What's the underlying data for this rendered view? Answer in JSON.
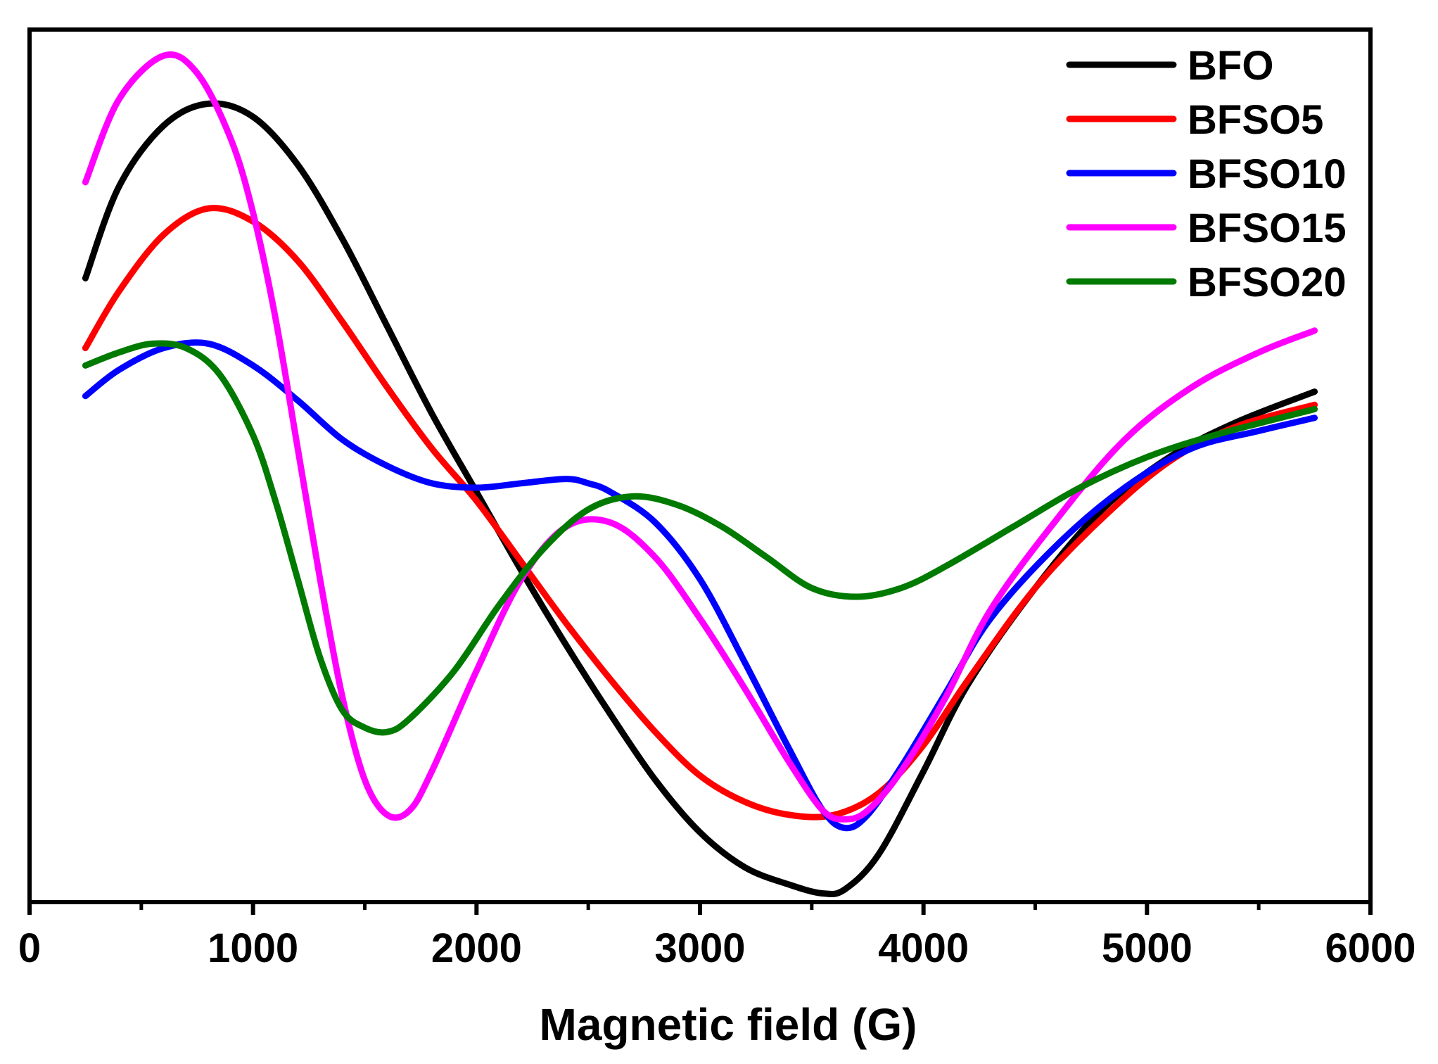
{
  "chart_data": {
    "type": "line",
    "title": "",
    "xlabel": "Magnetic field (G)",
    "ylabel": "",
    "xlim": [
      0,
      6000
    ],
    "ylim": [
      -1.0,
      1.0
    ],
    "x_ticks": [
      0,
      1000,
      2000,
      3000,
      4000,
      5000,
      6000
    ],
    "x_tick_labels": [
      "0",
      "1000",
      "2000",
      "3000",
      "4000",
      "5000",
      "6000"
    ],
    "y_ticks_shown": false,
    "legend_position": "top-right",
    "series": [
      {
        "name": "BFO",
        "color": "#000000",
        "points": [
          [
            250,
            0.43
          ],
          [
            400,
            0.64
          ],
          [
            600,
            0.78
          ],
          [
            800,
            0.83
          ],
          [
            1000,
            0.8
          ],
          [
            1200,
            0.69
          ],
          [
            1400,
            0.52
          ],
          [
            1600,
            0.32
          ],
          [
            1800,
            0.12
          ],
          [
            2000,
            -0.06
          ],
          [
            2200,
            -0.24
          ],
          [
            2400,
            -0.41
          ],
          [
            2600,
            -0.57
          ],
          [
            2800,
            -0.72
          ],
          [
            3000,
            -0.84
          ],
          [
            3200,
            -0.92
          ],
          [
            3400,
            -0.96
          ],
          [
            3550,
            -0.98
          ],
          [
            3650,
            -0.97
          ],
          [
            3800,
            -0.89
          ],
          [
            4000,
            -0.7
          ],
          [
            4200,
            -0.5
          ],
          [
            4500,
            -0.28
          ],
          [
            4800,
            -0.1
          ],
          [
            5100,
            0.02
          ],
          [
            5400,
            0.1
          ],
          [
            5750,
            0.17
          ]
        ]
      },
      {
        "name": "BFSO5",
        "color": "#ff0000",
        "points": [
          [
            250,
            0.27
          ],
          [
            400,
            0.4
          ],
          [
            600,
            0.53
          ],
          [
            800,
            0.59
          ],
          [
            1000,
            0.56
          ],
          [
            1200,
            0.47
          ],
          [
            1400,
            0.33
          ],
          [
            1600,
            0.18
          ],
          [
            1800,
            0.04
          ],
          [
            2000,
            -0.08
          ],
          [
            2200,
            -0.22
          ],
          [
            2400,
            -0.36
          ],
          [
            2600,
            -0.49
          ],
          [
            2800,
            -0.61
          ],
          [
            3000,
            -0.71
          ],
          [
            3200,
            -0.77
          ],
          [
            3400,
            -0.8
          ],
          [
            3600,
            -0.8
          ],
          [
            3800,
            -0.75
          ],
          [
            4000,
            -0.64
          ],
          [
            4200,
            -0.49
          ],
          [
            4500,
            -0.28
          ],
          [
            4800,
            -0.12
          ],
          [
            5100,
            0.01
          ],
          [
            5400,
            0.09
          ],
          [
            5750,
            0.14
          ]
        ]
      },
      {
        "name": "BFSO10",
        "color": "#0000ff",
        "points": [
          [
            250,
            0.16
          ],
          [
            400,
            0.22
          ],
          [
            600,
            0.27
          ],
          [
            800,
            0.28
          ],
          [
            1000,
            0.23
          ],
          [
            1200,
            0.15
          ],
          [
            1400,
            0.06
          ],
          [
            1600,
            0.0
          ],
          [
            1800,
            -0.04
          ],
          [
            2000,
            -0.05
          ],
          [
            2200,
            -0.04
          ],
          [
            2400,
            -0.03
          ],
          [
            2500,
            -0.04
          ],
          [
            2600,
            -0.06
          ],
          [
            2800,
            -0.13
          ],
          [
            3000,
            -0.26
          ],
          [
            3200,
            -0.45
          ],
          [
            3400,
            -0.65
          ],
          [
            3550,
            -0.79
          ],
          [
            3650,
            -0.83
          ],
          [
            3750,
            -0.8
          ],
          [
            3900,
            -0.69
          ],
          [
            4100,
            -0.52
          ],
          [
            4300,
            -0.35
          ],
          [
            4600,
            -0.18
          ],
          [
            4900,
            -0.05
          ],
          [
            5200,
            0.04
          ],
          [
            5500,
            0.08
          ],
          [
            5750,
            0.11
          ]
        ]
      },
      {
        "name": "BFSO15",
        "color": "#ff00ff",
        "points": [
          [
            250,
            0.65
          ],
          [
            400,
            0.84
          ],
          [
            600,
            0.94
          ],
          [
            750,
            0.9
          ],
          [
            900,
            0.75
          ],
          [
            1000,
            0.58
          ],
          [
            1100,
            0.34
          ],
          [
            1200,
            0.04
          ],
          [
            1300,
            -0.26
          ],
          [
            1400,
            -0.53
          ],
          [
            1500,
            -0.72
          ],
          [
            1600,
            -0.8
          ],
          [
            1700,
            -0.79
          ],
          [
            1800,
            -0.7
          ],
          [
            2000,
            -0.47
          ],
          [
            2200,
            -0.26
          ],
          [
            2400,
            -0.14
          ],
          [
            2600,
            -0.13
          ],
          [
            2800,
            -0.21
          ],
          [
            3000,
            -0.35
          ],
          [
            3200,
            -0.51
          ],
          [
            3400,
            -0.68
          ],
          [
            3550,
            -0.79
          ],
          [
            3650,
            -0.81
          ],
          [
            3750,
            -0.79
          ],
          [
            3900,
            -0.7
          ],
          [
            4100,
            -0.53
          ],
          [
            4300,
            -0.33
          ],
          [
            4600,
            -0.12
          ],
          [
            4900,
            0.06
          ],
          [
            5200,
            0.18
          ],
          [
            5500,
            0.26
          ],
          [
            5750,
            0.31
          ]
        ]
      },
      {
        "name": "BFSO20",
        "color": "#007a00",
        "points": [
          [
            250,
            0.23
          ],
          [
            400,
            0.26
          ],
          [
            550,
            0.28
          ],
          [
            700,
            0.27
          ],
          [
            850,
            0.21
          ],
          [
            1000,
            0.07
          ],
          [
            1100,
            -0.08
          ],
          [
            1200,
            -0.26
          ],
          [
            1300,
            -0.44
          ],
          [
            1400,
            -0.56
          ],
          [
            1500,
            -0.6
          ],
          [
            1600,
            -0.61
          ],
          [
            1700,
            -0.58
          ],
          [
            1900,
            -0.47
          ],
          [
            2100,
            -0.32
          ],
          [
            2300,
            -0.19
          ],
          [
            2500,
            -0.1
          ],
          [
            2700,
            -0.07
          ],
          [
            2900,
            -0.09
          ],
          [
            3100,
            -0.14
          ],
          [
            3300,
            -0.21
          ],
          [
            3500,
            -0.28
          ],
          [
            3700,
            -0.3
          ],
          [
            3900,
            -0.28
          ],
          [
            4100,
            -0.23
          ],
          [
            4400,
            -0.14
          ],
          [
            4700,
            -0.05
          ],
          [
            5000,
            0.02
          ],
          [
            5300,
            0.07
          ],
          [
            5750,
            0.13
          ]
        ]
      }
    ]
  }
}
